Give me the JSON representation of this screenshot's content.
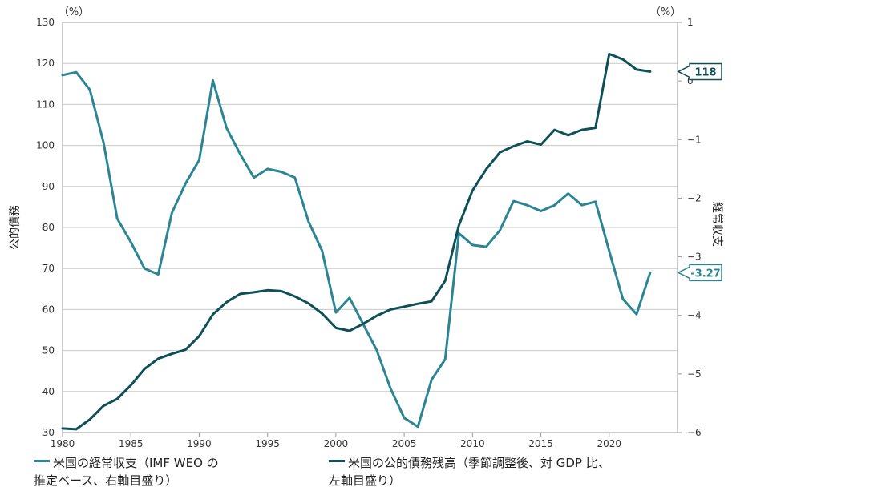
{
  "chart_data": {
    "type": "line",
    "y_left_unit": "（%）",
    "y_right_unit": "（%）",
    "y_left_label": "公的債務",
    "y_right_label": "経常収支",
    "ylim_left": [
      30,
      130
    ],
    "ylim_right": [
      -6,
      1
    ],
    "xlim": [
      1980,
      2025
    ],
    "x_ticks": [
      "1980",
      "1985",
      "1990",
      "1995",
      "2000",
      "2005",
      "2010",
      "2015",
      "2020"
    ],
    "y_left_ticks": [
      "30",
      "40",
      "50",
      "60",
      "70",
      "80",
      "90",
      "100",
      "110",
      "120",
      "130"
    ],
    "y_right_ticks": [
      "−6",
      "−5",
      "−4",
      "−3",
      "−2",
      "−1",
      "0",
      "1"
    ],
    "grid": true,
    "legend_position": "bottom",
    "colors": {
      "current_account": "#2b8592",
      "public_debt": "#0e4f58"
    },
    "series": [
      {
        "name_line1": "米国の経常収支（IMF WEO の",
        "name_line2": "推定ベース、右軸目盛り）",
        "axis": "right",
        "color": "#2b8592",
        "x": [
          1980,
          1981,
          1982,
          1983,
          1984,
          1985,
          1986,
          1987,
          1988,
          1989,
          1990,
          1991,
          1992,
          1993,
          1994,
          1995,
          1996,
          1997,
          1998,
          1999,
          2000,
          2001,
          2002,
          2003,
          2004,
          2005,
          2006,
          2007,
          2008,
          2009,
          2010,
          2011,
          2012,
          2013,
          2014,
          2015,
          2016,
          2017,
          2018,
          2019,
          2020,
          2021,
          2022,
          2023
        ],
        "values": [
          0.1,
          0.15,
          -0.15,
          -1.05,
          -2.35,
          -2.75,
          -3.2,
          -3.3,
          -2.25,
          -1.75,
          -1.35,
          0.01,
          -0.8,
          -1.25,
          -1.65,
          -1.5,
          -1.55,
          -1.65,
          -2.4,
          -2.9,
          -3.95,
          -3.7,
          -4.15,
          -4.6,
          -5.25,
          -5.75,
          -5.9,
          -5.1,
          -4.75,
          -2.6,
          -2.8,
          -2.83,
          -2.55,
          -2.05,
          -2.12,
          -2.22,
          -2.12,
          -1.92,
          -2.12,
          -2.06,
          -2.9,
          -3.72,
          -3.98,
          -3.27
        ],
        "end_label": "-3.27"
      },
      {
        "name_line1": "米国の公的債務残高（季節調整後、対 GDP 比、",
        "name_line2": "左軸目盛り）",
        "axis": "left",
        "color": "#0e4f58",
        "x": [
          1980,
          1981,
          1982,
          1983,
          1984,
          1985,
          1986,
          1987,
          1988,
          1989,
          1990,
          1991,
          1992,
          1993,
          1994,
          1995,
          1996,
          1997,
          1998,
          1999,
          2000,
          2001,
          2002,
          2003,
          2004,
          2005,
          2006,
          2007,
          2008,
          2009,
          2010,
          2011,
          2012,
          2013,
          2014,
          2015,
          2016,
          2017,
          2018,
          2019,
          2020,
          2021,
          2022,
          2023
        ],
        "values": [
          31,
          30.8,
          33.2,
          36.5,
          38.2,
          41.5,
          45.5,
          48,
          49.2,
          50.2,
          53.5,
          58.8,
          61.8,
          63.8,
          64.2,
          64.7,
          64.5,
          63.2,
          61.5,
          59,
          55.5,
          54.8,
          56.5,
          58.5,
          60,
          60.7,
          61.4,
          62,
          67,
          80.5,
          89,
          94.2,
          98.3,
          99.8,
          101,
          100.2,
          103.8,
          102.5,
          103.8,
          104.3,
          122.3,
          121,
          118.5,
          118
        ],
        "end_label": "118"
      }
    ]
  }
}
